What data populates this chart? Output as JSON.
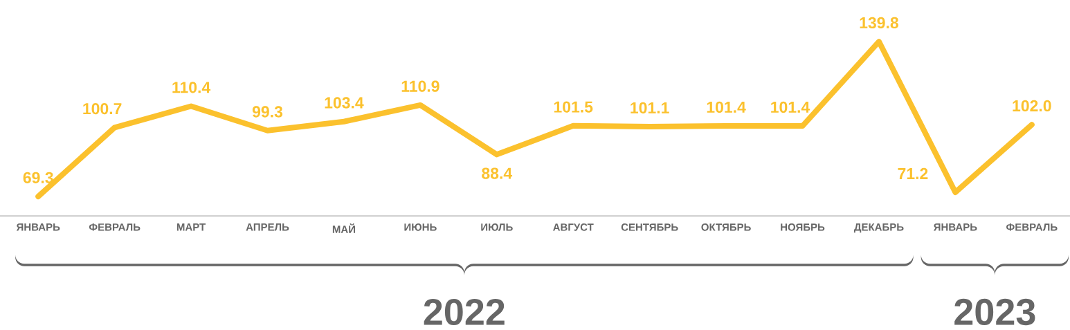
{
  "chart_data": {
    "type": "line",
    "categories": [
      "ЯНВАРЬ",
      "ФЕВРАЛЬ",
      "МАРТ",
      "АПРЕЛЬ",
      "МАЙ",
      "ИЮНЬ",
      "ИЮЛЬ",
      "АВГУСТ",
      "СЕНТЯБРЬ",
      "ОКТЯБРЬ",
      "НОЯБРЬ",
      "ДЕКАБРЬ",
      "ЯНВАРЬ",
      "ФЕВРАЛЬ"
    ],
    "values": [
      69.3,
      100.7,
      110.4,
      99.3,
      103.4,
      110.9,
      88.4,
      101.5,
      101.1,
      101.4,
      101.4,
      139.8,
      71.2,
      102.0
    ],
    "color": "#fbc12d",
    "line_style": "solid",
    "value_labels": [
      "69.3",
      "100.7",
      "110.4",
      "99.3",
      "103.4",
      "110.9",
      "88.4",
      "101.5",
      "101.1",
      "101.4",
      "101.4",
      "139.8",
      "71.2",
      "102.0"
    ],
    "annotations": [
      "2022",
      "2023"
    ]
  }
}
